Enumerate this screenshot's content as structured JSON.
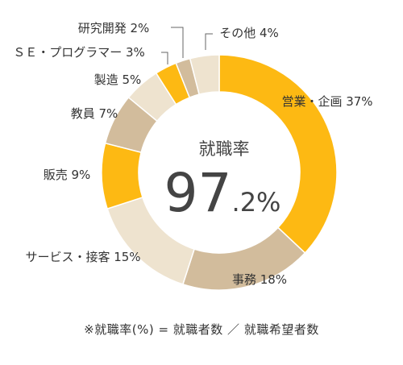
{
  "chart_data": {
    "type": "pie",
    "donut": true,
    "categories": [
      "営業・企画",
      "事務",
      "サービス・接客",
      "販売",
      "教員",
      "製造",
      "ＳＥ・プログラマー",
      "研究開発",
      "その他"
    ],
    "values": [
      37,
      18,
      15,
      9,
      7,
      5,
      3,
      2,
      4
    ],
    "colors": [
      "#FDB913",
      "#D2BC9C",
      "#EEE3CF",
      "#FDB913",
      "#D2BC9C",
      "#EEE3CF",
      "#FDB913",
      "#D2BC9C",
      "#EEE3CF"
    ],
    "labels": [
      "営業・企画 37%",
      "事務 18%",
      "サービス・接客 15%",
      "販売 9%",
      "教員 7%",
      "製造 5%",
      "ＳＥ・プログラマー 3%",
      "研究開発 2%",
      "その他 4%"
    ],
    "center": {
      "title": "就職率",
      "value_main": "97",
      "value_sub": ".2%"
    }
  },
  "footnote": "※就職率(%) = 就職者数 ／ 就職希望者数"
}
